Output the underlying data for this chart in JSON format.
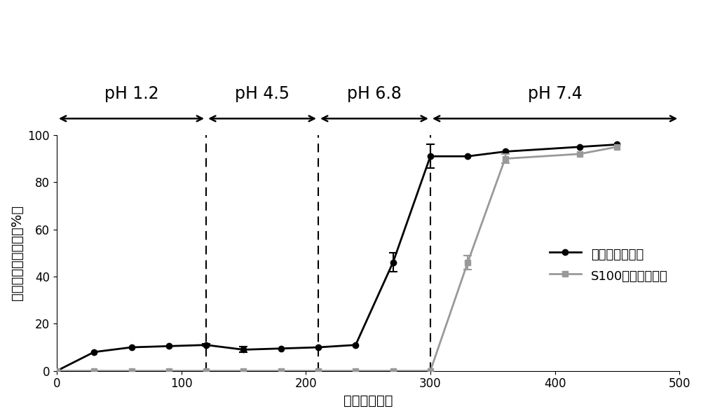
{
  "black_x": [
    0,
    30,
    60,
    90,
    120,
    150,
    180,
    210,
    240,
    270,
    300,
    330,
    360,
    420,
    450
  ],
  "black_y": [
    0,
    8,
    10,
    10.5,
    11,
    9,
    9.5,
    10,
    11,
    46,
    91,
    91,
    93,
    95,
    96
  ],
  "black_yerr": [
    0,
    0,
    0,
    0,
    0.5,
    1.2,
    0,
    0,
    0,
    4,
    5,
    0,
    0,
    0,
    0
  ],
  "gray_x": [
    0,
    30,
    60,
    90,
    120,
    150,
    180,
    210,
    240,
    270,
    300,
    330,
    360,
    420,
    450
  ],
  "gray_y": [
    0,
    0,
    0,
    0,
    0,
    0,
    0,
    0,
    0,
    0,
    0,
    46,
    90,
    92,
    95
  ],
  "gray_yerr": [
    0,
    0,
    0,
    0,
    0,
    0,
    0,
    0,
    0,
    0,
    0,
    3,
    2,
    0,
    0
  ],
  "dashed_lines": [
    120,
    210,
    300
  ],
  "ph_regions": [
    {
      "label": "pH 1.2",
      "x_start": 0,
      "x_end": 120,
      "x_center": 60
    },
    {
      "label": "pH 4.5",
      "x_start": 120,
      "x_end": 210,
      "x_center": 165
    },
    {
      "label": "pH 6.8",
      "x_start": 210,
      "x_end": 300,
      "x_center": 255
    },
    {
      "label": "pH 7.4",
      "x_start": 300,
      "x_end": 500,
      "x_center": 400
    }
  ],
  "xlim": [
    0,
    500
  ],
  "ylim": [
    0,
    100
  ],
  "xlabel": "时间（分钟）",
  "ylabel": "累积胰岛素释放量（%）",
  "legend1": "胰岛素固体颗粒",
  "legend2": "S100包衣肠溶胶囊",
  "black_color": "#000000",
  "gray_color": "#999999",
  "label_fontsize": 14,
  "tick_fontsize": 12,
  "ph_fontsize": 17,
  "legend_fontsize": 13
}
